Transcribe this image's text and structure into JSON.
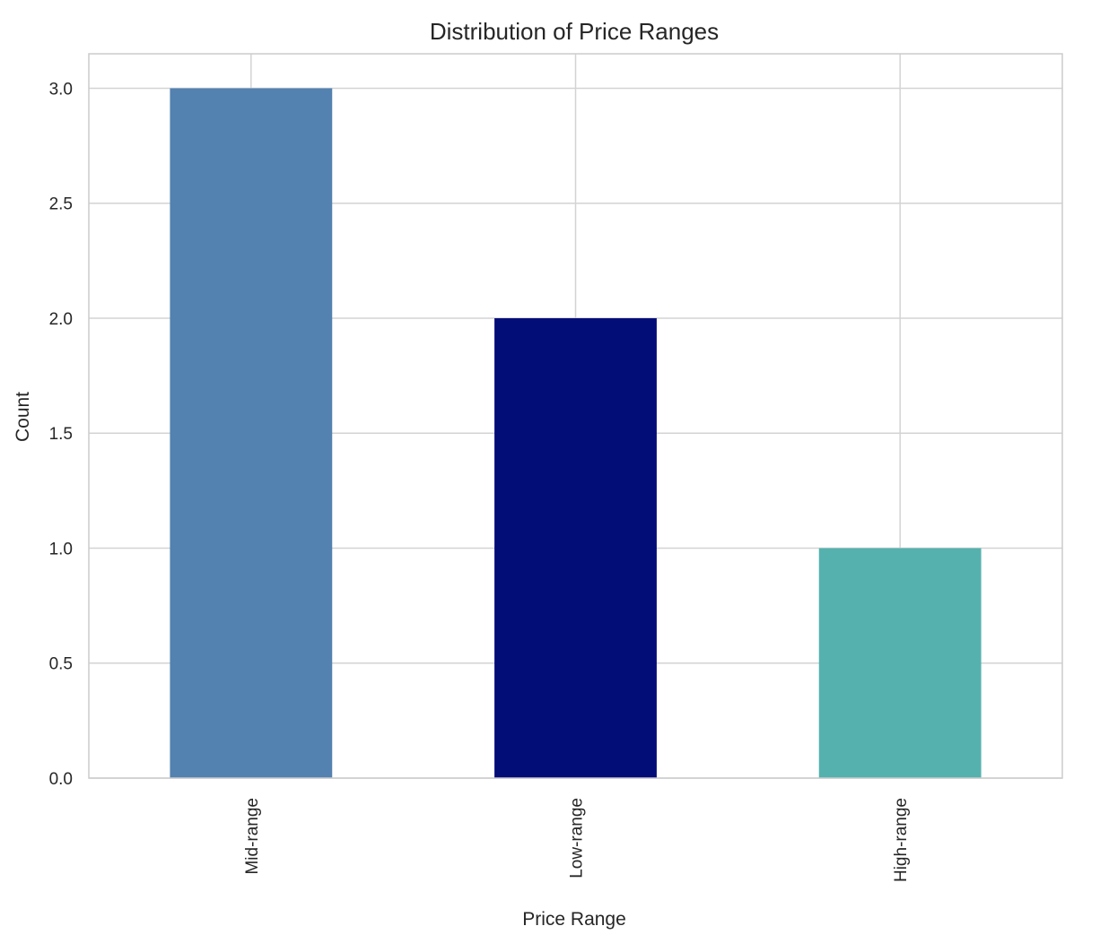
{
  "chart_data": {
    "type": "bar",
    "title": "Distribution of Price Ranges",
    "xlabel": "Price Range",
    "ylabel": "Count",
    "categories": [
      "Mid-range",
      "Low-range",
      "High-range"
    ],
    "values": [
      3,
      2,
      1
    ],
    "colors": [
      "#5381b0",
      "#020d78",
      "#55b1ae"
    ],
    "ylim": [
      0,
      3.15
    ],
    "yticks": [
      0.0,
      0.5,
      1.0,
      1.5,
      2.0,
      2.5,
      3.0
    ],
    "ytick_labels": [
      "0.0",
      "0.5",
      "1.0",
      "1.5",
      "2.0",
      "2.5",
      "3.0"
    ],
    "grid": true,
    "xtick_rotation": "vertical"
  }
}
